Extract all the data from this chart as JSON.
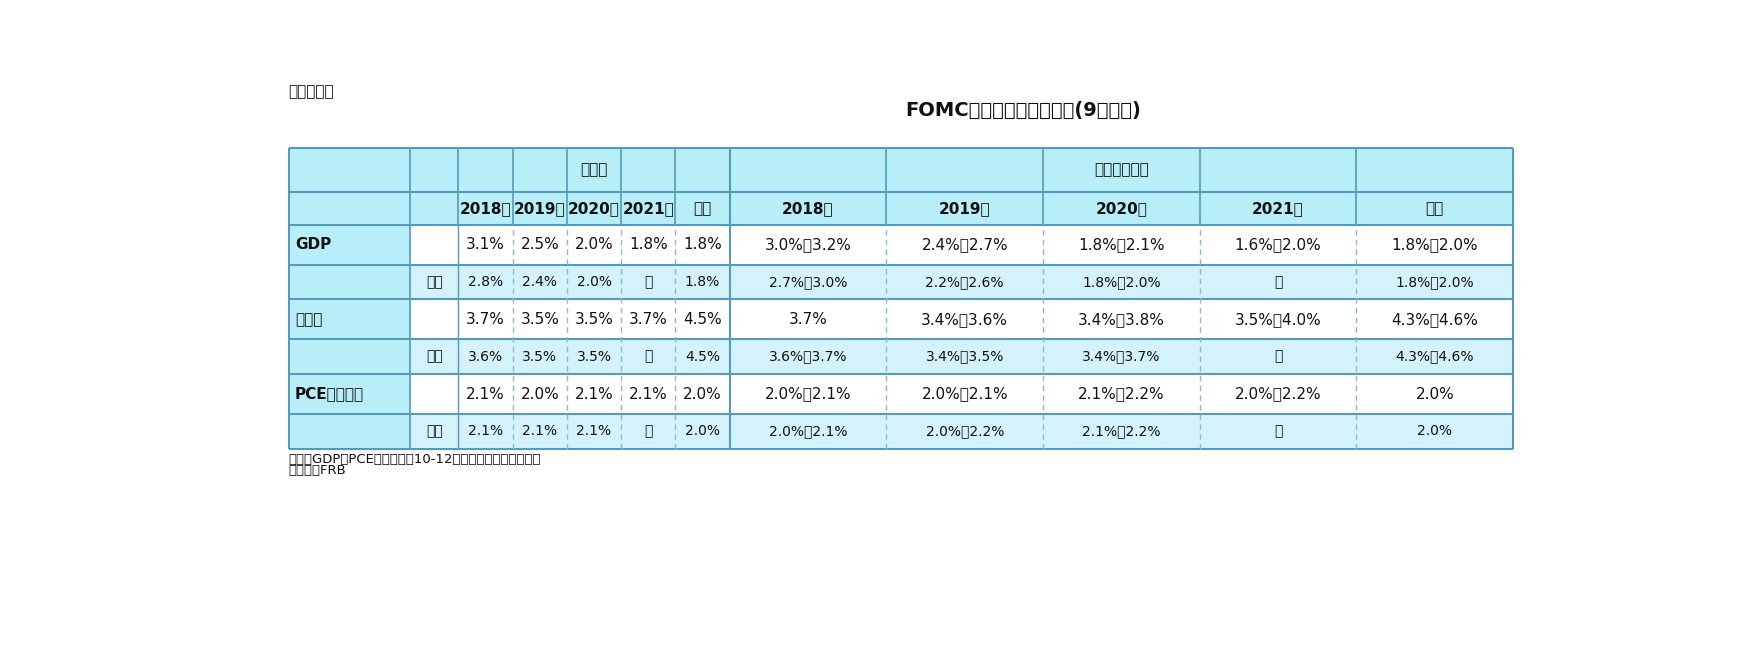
{
  "title": "FOMC参加者の経済見通し(9月会合)",
  "subtitle": "（図表１）",
  "note1": "（注）GDPとPCE価格指数は10-12月期の前年同期比伸び率",
  "note2": "（資料）FRB",
  "header_bg": "#b8eef8",
  "sub_row_bg": "#d4f2fb",
  "white_bg": "#ffffff",
  "border_solid": "#5599bb",
  "border_dashed": "#88bbcc",
  "median_header": "中央値",
  "range_header": "中央値レンジ",
  "year_labels": [
    "2018年",
    "2019年",
    "2020年",
    "2021年",
    "長期"
  ],
  "rows": [
    {
      "label": "GDP",
      "sublabel": "前回",
      "main": [
        "3.1%",
        "2.5%",
        "2.0%",
        "1.8%",
        "1.8%"
      ],
      "sub": [
        "2.8%",
        "2.4%",
        "2.0%",
        "－",
        "1.8%"
      ],
      "main_range": [
        "3.0%－3.2%",
        "2.4%－2.7%",
        "1.8%－2.1%",
        "1.6%－2.0%",
        "1.8%－2.0%"
      ],
      "sub_range": [
        "2.7%－3.0%",
        "2.2%－2.6%",
        "1.8%－2.0%",
        "－",
        "1.8%－2.0%"
      ]
    },
    {
      "label": "失業率",
      "sublabel": "前回",
      "main": [
        "3.7%",
        "3.5%",
        "3.5%",
        "3.7%",
        "4.5%"
      ],
      "sub": [
        "3.6%",
        "3.5%",
        "3.5%",
        "－",
        "4.5%"
      ],
      "main_range": [
        "3.7%",
        "3.4%－3.6%",
        "3.4%－3.8%",
        "3.5%－4.0%",
        "4.3%－4.6%"
      ],
      "sub_range": [
        "3.6%－3.7%",
        "3.4%－3.5%",
        "3.4%－3.7%",
        "－",
        "4.3%－4.6%"
      ]
    },
    {
      "label": "PCE価格指数",
      "sublabel": "前回",
      "main": [
        "2.1%",
        "2.0%",
        "2.1%",
        "2.1%",
        "2.0%"
      ],
      "sub": [
        "2.1%",
        "2.1%",
        "2.1%",
        "－",
        "2.0%"
      ],
      "main_range": [
        "2.0%－2.1%",
        "2.0%－2.1%",
        "2.1%－2.2%",
        "2.0%－2.2%",
        "2.0%"
      ],
      "sub_range": [
        "2.0%－2.1%",
        "2.0%－2.2%",
        "2.1%－2.2%",
        "－",
        "2.0%"
      ]
    }
  ]
}
